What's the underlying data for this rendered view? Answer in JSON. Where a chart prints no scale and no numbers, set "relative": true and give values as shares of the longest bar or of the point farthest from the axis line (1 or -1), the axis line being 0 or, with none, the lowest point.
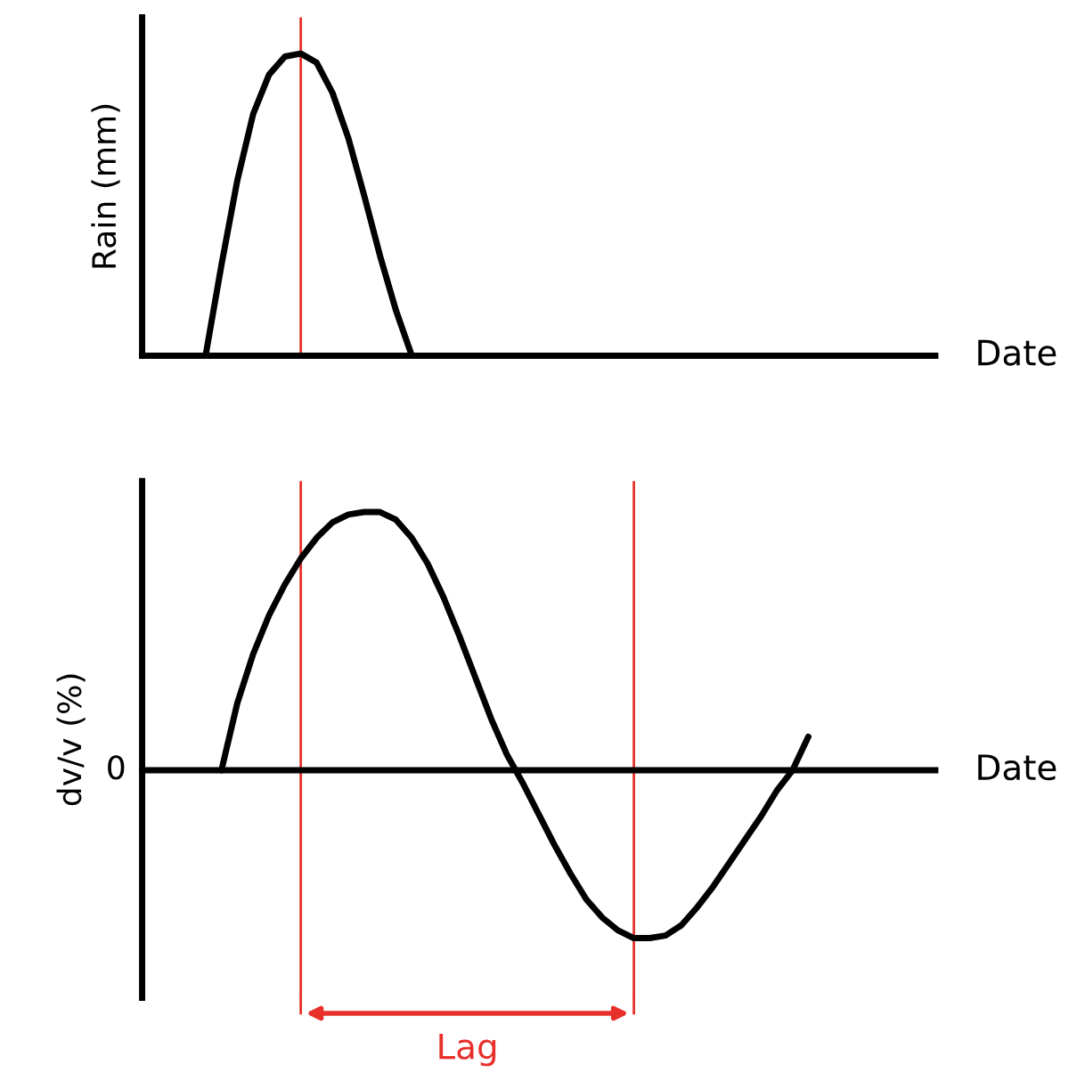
{
  "chart_data": [
    {
      "type": "line",
      "relative": true,
      "ylabel": "Rain (mm)",
      "xlabel": "Date",
      "categories": [
        null,
        null,
        null,
        null,
        null,
        null,
        null,
        null,
        null,
        null,
        null,
        null,
        null,
        null,
        null,
        null,
        null,
        null,
        null,
        null,
        null,
        null,
        null,
        null,
        null,
        null,
        null,
        null,
        null,
        null,
        null,
        null,
        null,
        null,
        null,
        null,
        null,
        null,
        null,
        null,
        null,
        null,
        null,
        null,
        null,
        null,
        null,
        null,
        null,
        null,
        null
      ],
      "series": [
        {
          "color": "#000000",
          "values": [
            null,
            null,
            null,
            null,
            0,
            0.3,
            0.58,
            0.8,
            0.93,
            0.99,
            1.0,
            0.97,
            0.87,
            0.72,
            0.53,
            0.33,
            0.15,
            0,
            null,
            null,
            null,
            null,
            null,
            null,
            null,
            null,
            null,
            null,
            null,
            null,
            null,
            null,
            null,
            null,
            null,
            null,
            null,
            null,
            null,
            null,
            null,
            null,
            null,
            null,
            null,
            null,
            null,
            null,
            null,
            null,
            null
          ]
        }
      ]
    },
    {
      "type": "line",
      "relative": true,
      "ylabel": "dv/v (%)",
      "xlabel": "Date",
      "categories": [
        null,
        null,
        null,
        null,
        null,
        null,
        null,
        null,
        null,
        null,
        null,
        null,
        null,
        null,
        null,
        null,
        null,
        null,
        null,
        null,
        null,
        null,
        null,
        null,
        null,
        null,
        null,
        null,
        null,
        null,
        null,
        null,
        null,
        null,
        null,
        null,
        null,
        null,
        null,
        null,
        null,
        null,
        null,
        null,
        null,
        null,
        null,
        null,
        null,
        null,
        null
      ],
      "series": [
        {
          "color": "#000000",
          "values": [
            null,
            null,
            null,
            null,
            null,
            0,
            0.26,
            0.45,
            0.6,
            0.72,
            0.82,
            0.9,
            0.96,
            0.99,
            1.0,
            1.0,
            0.97,
            0.9,
            0.8,
            0.67,
            0.52,
            0.36,
            0.2,
            0.06,
            -0.05,
            -0.17,
            -0.29,
            -0.4,
            -0.5,
            -0.57,
            -0.62,
            -0.65,
            -0.65,
            -0.64,
            -0.6,
            -0.53,
            -0.45,
            -0.36,
            -0.27,
            -0.18,
            -0.08,
            0.0,
            0.13,
            null,
            null,
            null,
            null,
            null,
            null,
            null,
            null
          ]
        }
      ],
      "annotations": [
        "0",
        "Lag"
      ]
    }
  ]
}
